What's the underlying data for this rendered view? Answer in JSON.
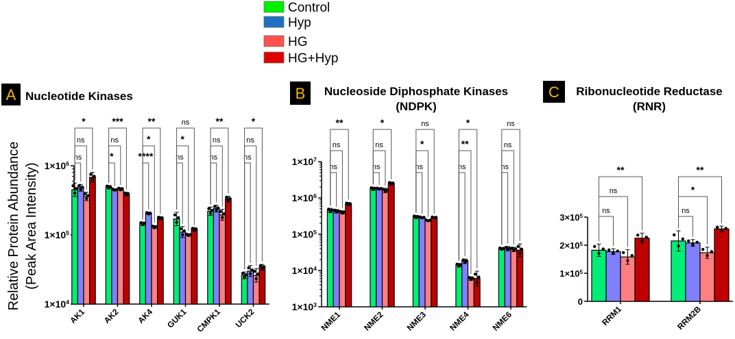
{
  "legend": [
    {
      "label": "Control",
      "color": "#00f000"
    },
    {
      "label": "Hyp",
      "color": "#1f6fc4"
    },
    {
      "label": "HG",
      "color": "#ff5050"
    },
    {
      "label": "HG+Hyp",
      "color": "#e00000"
    }
  ],
  "bar_colors": [
    "#00ee76",
    "#8080ff",
    "#ff8080",
    "#c00000"
  ],
  "y_axis_title": [
    "Relative Protein Abundance",
    "(Peak Area Intensity)"
  ],
  "chart_data": [
    {
      "type": "bar",
      "panel": "A",
      "title": [
        "Nucleotide Kinases"
      ],
      "scale": "log",
      "ylim": [
        10000,
        5000000
      ],
      "ylabel": "Relative Protein Abundance (Peak Area Intensity)",
      "yticks": [
        {
          "value": 10000,
          "base": "1×10",
          "exp": "4"
        },
        {
          "value": 100000,
          "base": "1×10",
          "exp": "5"
        },
        {
          "value": 1000000,
          "base": "1×10",
          "exp": "6"
        }
      ],
      "categories": [
        "AK1",
        "AK2",
        "AK4",
        "GUK1",
        "CMPK1",
        "UCK2"
      ],
      "series": [
        {
          "name": "Control",
          "values": [
            450000,
            490000,
            145000,
            170000,
            220000,
            26000
          ],
          "err": [
            0.25,
            0.06,
            0.06,
            0.25,
            0.15,
            0.12
          ]
        },
        {
          "name": "Hyp",
          "values": [
            480000,
            450000,
            205000,
            110000,
            240000,
            30000
          ],
          "err": [
            0.12,
            0.03,
            0.04,
            0.2,
            0.12,
            0.2
          ]
        },
        {
          "name": "HG",
          "values": [
            360000,
            460000,
            130000,
            100000,
            195000,
            26000
          ],
          "err": [
            0.15,
            0.05,
            0.05,
            0.04,
            0.2,
            0.25
          ]
        },
        {
          "name": "HG+Hyp",
          "values": [
            680000,
            390000,
            175000,
            120000,
            330000,
            34000
          ],
          "err": [
            0.18,
            0.06,
            0.05,
            0.06,
            0.1,
            0.1
          ]
        }
      ],
      "significance": [
        [
          "ns",
          "ns",
          "*"
        ],
        [
          "*",
          "ns",
          "***"
        ],
        [
          "****",
          "*",
          "**"
        ],
        [
          "ns",
          "*",
          "ns"
        ],
        [
          "ns",
          "ns",
          "**"
        ],
        [
          "ns",
          "ns",
          "*"
        ]
      ]
    },
    {
      "type": "bar",
      "panel": "B",
      "title": [
        "Nucleoside Diphosphate Kinases",
        "(NDPK)"
      ],
      "scale": "log",
      "ylim": [
        1000,
        10000000
      ],
      "yticks": [
        {
          "value": 1000,
          "base": "1×10",
          "exp": "3"
        },
        {
          "value": 10000,
          "base": "1×10",
          "exp": "4"
        },
        {
          "value": 100000,
          "base": "1×10",
          "exp": "5"
        },
        {
          "value": 1000000,
          "base": "1×10",
          "exp": "6"
        },
        {
          "value": 10000000,
          "base": "1×10",
          "exp": "7"
        }
      ],
      "categories": [
        "NME1",
        "NME2",
        "NME3",
        "NME4",
        "NME6"
      ],
      "series": [
        {
          "name": "Control",
          "values": [
            450000,
            1800000,
            300000,
            14000,
            40000
          ],
          "err": [
            0.15,
            0.1,
            0.1,
            0.12,
            0.08
          ]
        },
        {
          "name": "Hyp",
          "values": [
            430000,
            1800000,
            290000,
            18000,
            40000
          ],
          "err": [
            0.12,
            0.06,
            0.05,
            0.15,
            0.15
          ]
        },
        {
          "name": "HG",
          "values": [
            400000,
            1600000,
            240000,
            6000,
            38000
          ],
          "err": [
            0.1,
            0.15,
            0.05,
            0.12,
            0.15
          ]
        },
        {
          "name": "HG+Hyp",
          "values": [
            680000,
            2500000,
            290000,
            6000,
            36000
          ],
          "err": [
            0.1,
            0.1,
            0.05,
            0.6,
            0.5
          ]
        }
      ],
      "significance": [
        [
          "ns",
          "ns",
          "**"
        ],
        [
          "ns",
          "ns",
          "*"
        ],
        [
          "ns",
          "*",
          "ns"
        ],
        [
          "ns",
          "**",
          "*"
        ],
        [
          "ns",
          "ns",
          "ns"
        ]
      ]
    },
    {
      "type": "bar",
      "panel": "C",
      "title": [
        "Ribonucleotide Reductase",
        "(RNR)"
      ],
      "scale": "linear",
      "ylim": [
        0,
        300000
      ],
      "yticks": [
        {
          "value": 0,
          "base": "0",
          "exp": ""
        },
        {
          "value": 100000,
          "base": "1×10",
          "exp": "5"
        },
        {
          "value": 200000,
          "base": "2×10",
          "exp": "5"
        },
        {
          "value": 300000,
          "base": "3×10",
          "exp": "5"
        }
      ],
      "categories": [
        "RRM1",
        "RRM2B"
      ],
      "series": [
        {
          "name": "Control",
          "values": [
            182000,
            215000
          ],
          "err": [
            22000,
            36000
          ]
        },
        {
          "name": "Hyp",
          "values": [
            177000,
            208000
          ],
          "err": [
            10000,
            12000
          ]
        },
        {
          "name": "HG",
          "values": [
            158000,
            173000
          ],
          "err": [
            26000,
            20000
          ]
        },
        {
          "name": "HG+Hyp",
          "values": [
            225000,
            258000
          ],
          "err": [
            18000,
            10000
          ]
        }
      ],
      "significance": [
        [
          "ns",
          "ns",
          "**"
        ],
        [
          "ns",
          "*",
          "**"
        ]
      ]
    }
  ]
}
